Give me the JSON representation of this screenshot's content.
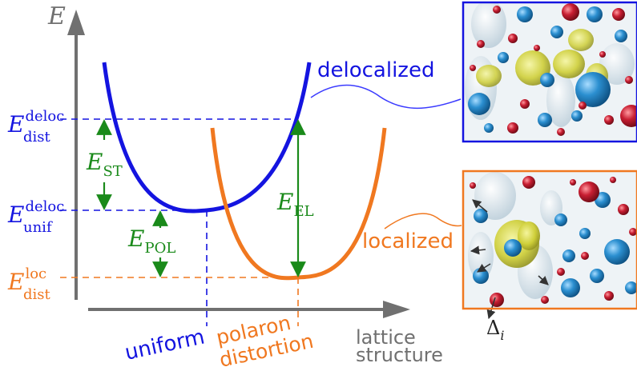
{
  "axes": {
    "y_label": "E",
    "x_label_line1": "lattice",
    "x_label_line2": "structure"
  },
  "energy_levels": {
    "deloc_dist": {
      "main": "E",
      "sup": "deloc",
      "sub": "dist"
    },
    "deloc_unif": {
      "main": "E",
      "sup": "deloc",
      "sub": "unif"
    },
    "loc_dist": {
      "main": "E",
      "sup": "loc",
      "sub": "dist"
    }
  },
  "energy_gaps": {
    "st": {
      "main": "E",
      "sub": "ST"
    },
    "pol": {
      "main": "E",
      "sub": "POL"
    },
    "el": {
      "main": "E",
      "sub": "EL"
    }
  },
  "curve_labels": {
    "delocalized": "delocalized",
    "localized": "localized"
  },
  "x_ticks": {
    "uniform": "uniform",
    "polaron_line1": "polaron",
    "polaron_line2": "distortion"
  },
  "inset_annotation": {
    "main": "Δ",
    "sub": "i"
  },
  "colors": {
    "delocalized": "#1414e0",
    "localized": "#f07820",
    "gap_arrows": "#1a8a1a",
    "axis": "#707070",
    "atom_blue": "#2b8fd0",
    "atom_red": "#c81e32",
    "density_yellow": "#d8d840",
    "inset_bg": "#eef3f6"
  }
}
